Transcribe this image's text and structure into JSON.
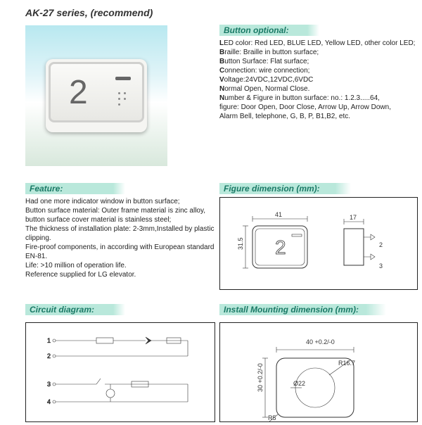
{
  "title": "AK-27 series, (recommend)",
  "product_button": {
    "digit": "2"
  },
  "sections": {
    "button_optional": {
      "header": "Button optional:",
      "lines": [
        "<b>L</b>ED color: Red LED, BLUE LED, Yellow LED, other color LED;",
        "<b>B</b>raille: Braille in button surface;",
        "<b>B</b>utton Surface: Flat surface;",
        "<b>C</b>onnection: wire connection;",
        "<b>V</b>oltage:24VDC,12VDC,6VDC",
        "<b>N</b>ormal Open, Normal Close.",
        "<b>N</b>umber &  Figure in button surface: no.: 1.2.3.....64,",
        "figure: Door Open, Door Close, Arrow Up, Arrow Down,",
        "Alarm Bell, telephone, G, B, P, B1,B2, etc."
      ]
    },
    "feature": {
      "header": "Feature:",
      "lines": [
        "Had one more indicator window in button surface;",
        "Button surface material: Outer frame material is zinc alloy,",
        "button surface cover material is stainless steel;",
        "The thickness of installation plate: 2-3mm,Installed by plastic clipping.",
        "Fire-proof components, in according with European standard EN-81.",
        "Life: >10  million of operation life.",
        "Reference supplied for LG elevator."
      ]
    },
    "figure_dimension": {
      "header": "Figure dimension (mm):",
      "front": {
        "width": 41,
        "height": 31.5,
        "symbol": "2"
      },
      "side": {
        "width": 17,
        "prong": 2,
        "gap": 3
      }
    },
    "circuit_diagram": {
      "header": "Circuit diagram:",
      "terminals": [
        1,
        2,
        3,
        4
      ]
    },
    "install_mounting": {
      "header": "Install Mounting dimension (mm):",
      "width_label": "40 +0.2/-0",
      "height_label": "30 +0.2/-0",
      "corner_radius": "R5",
      "inner_radius": "R16.7",
      "hole_dia": "Ø22"
    }
  },
  "colors": {
    "header_bg": "#b9e8db",
    "header_text": "#1a7a66",
    "text": "#222222",
    "line": "#333333"
  }
}
